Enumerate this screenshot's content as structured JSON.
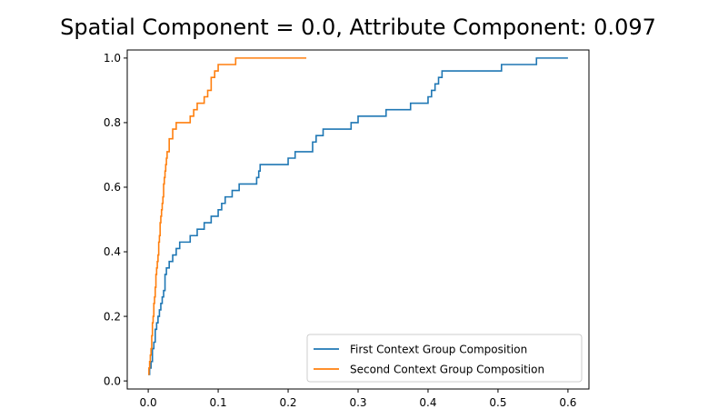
{
  "chart_data": {
    "type": "line",
    "title": "Spatial Component = 0.0, Attribute Component: 0.097",
    "xlabel": "",
    "ylabel": "",
    "xlim": [
      -0.03,
      0.63
    ],
    "ylim": [
      -0.025,
      1.025
    ],
    "xticks": [
      0.0,
      0.1,
      0.2,
      0.3,
      0.4,
      0.5,
      0.6
    ],
    "xtick_labels": [
      "0.0",
      "0.1",
      "0.2",
      "0.3",
      "0.4",
      "0.5",
      "0.6"
    ],
    "yticks": [
      0.0,
      0.2,
      0.4,
      0.6,
      0.8,
      1.0
    ],
    "ytick_labels": [
      "0.0",
      "0.2",
      "0.4",
      "0.6",
      "0.8",
      "1.0"
    ],
    "grid": false,
    "legend_position": "lower-right",
    "drawstyle": "steps-post",
    "series": [
      {
        "name": "First Context Group Composition",
        "color": "#1f77b4",
        "x": [
          0.0,
          0.002,
          0.004,
          0.006,
          0.008,
          0.01,
          0.012,
          0.014,
          0.016,
          0.018,
          0.02,
          0.022,
          0.024,
          0.026,
          0.03,
          0.035,
          0.04,
          0.045,
          0.05,
          0.06,
          0.07,
          0.08,
          0.09,
          0.1,
          0.105,
          0.11,
          0.12,
          0.13,
          0.14,
          0.155,
          0.158,
          0.16,
          0.2,
          0.21,
          0.235,
          0.24,
          0.25,
          0.29,
          0.3,
          0.34,
          0.375,
          0.4,
          0.405,
          0.41,
          0.415,
          0.42,
          0.505,
          0.555,
          0.6
        ],
        "y": [
          0.02,
          0.04,
          0.06,
          0.1,
          0.12,
          0.16,
          0.18,
          0.2,
          0.22,
          0.24,
          0.26,
          0.28,
          0.33,
          0.35,
          0.37,
          0.39,
          0.41,
          0.43,
          0.43,
          0.45,
          0.47,
          0.49,
          0.51,
          0.53,
          0.55,
          0.57,
          0.59,
          0.61,
          0.61,
          0.63,
          0.65,
          0.67,
          0.69,
          0.71,
          0.74,
          0.76,
          0.78,
          0.8,
          0.82,
          0.84,
          0.86,
          0.88,
          0.9,
          0.92,
          0.94,
          0.96,
          0.98,
          1.0,
          1.0
        ]
      },
      {
        "name": "Second Context Group Composition",
        "color": "#ff7f0e",
        "x": [
          0.0,
          0.001,
          0.002,
          0.003,
          0.004,
          0.005,
          0.006,
          0.007,
          0.008,
          0.009,
          0.01,
          0.011,
          0.012,
          0.013,
          0.014,
          0.015,
          0.016,
          0.017,
          0.018,
          0.019,
          0.02,
          0.021,
          0.022,
          0.023,
          0.024,
          0.025,
          0.026,
          0.027,
          0.03,
          0.035,
          0.04,
          0.06,
          0.065,
          0.07,
          0.08,
          0.085,
          0.09,
          0.095,
          0.1,
          0.11,
          0.125,
          0.226
        ],
        "y": [
          0.02,
          0.04,
          0.06,
          0.08,
          0.1,
          0.14,
          0.18,
          0.2,
          0.24,
          0.26,
          0.29,
          0.33,
          0.35,
          0.37,
          0.39,
          0.43,
          0.45,
          0.49,
          0.51,
          0.53,
          0.55,
          0.57,
          0.61,
          0.63,
          0.65,
          0.67,
          0.69,
          0.71,
          0.75,
          0.78,
          0.8,
          0.82,
          0.84,
          0.86,
          0.88,
          0.9,
          0.94,
          0.96,
          0.98,
          0.98,
          1.0,
          1.0
        ]
      }
    ]
  }
}
